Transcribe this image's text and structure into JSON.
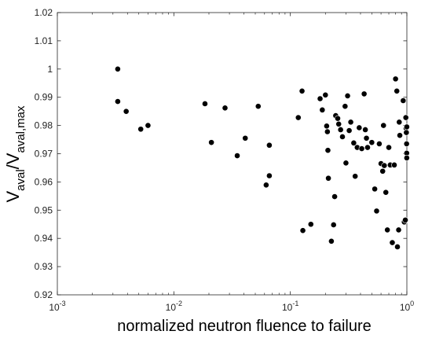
{
  "chart_data": {
    "type": "scatter",
    "x_scale": "log",
    "xlim": [
      0.001,
      1
    ],
    "ylim": [
      0.92,
      1.02
    ],
    "grid": false,
    "legend": "none",
    "marker_color": "#000000",
    "xlabel": "normalized neutron fluence to failure",
    "ylabel": {
      "base": "V",
      "sub_num": "aval",
      "slash": "/",
      "base2": "V",
      "sub_den": "aval,max"
    },
    "x_ticks": [
      {
        "value": 0.001,
        "base": "10",
        "exp": "-3"
      },
      {
        "value": 0.01,
        "base": "10",
        "exp": "-2"
      },
      {
        "value": 0.1,
        "base": "10",
        "exp": "-1"
      },
      {
        "value": 1,
        "base": "10",
        "exp": "0"
      }
    ],
    "y_ticks": [
      {
        "value": 0.92,
        "label": "0.92"
      },
      {
        "value": 0.93,
        "label": "0.93"
      },
      {
        "value": 0.94,
        "label": "0.94"
      },
      {
        "value": 0.95,
        "label": "0.95"
      },
      {
        "value": 0.96,
        "label": "0.96"
      },
      {
        "value": 0.97,
        "label": "0.97"
      },
      {
        "value": 0.98,
        "label": "0.98"
      },
      {
        "value": 0.99,
        "label": "0.99"
      },
      {
        "value": 1.0,
        "label": "1"
      },
      {
        "value": 1.01,
        "label": "1.01"
      },
      {
        "value": 1.02,
        "label": "1.02"
      }
    ],
    "points": [
      [
        0.0033,
        1.0
      ],
      [
        0.0033,
        0.9885
      ],
      [
        0.0039,
        0.985
      ],
      [
        0.0052,
        0.9787
      ],
      [
        0.006,
        0.98
      ],
      [
        0.0185,
        0.9877
      ],
      [
        0.021,
        0.974
      ],
      [
        0.0275,
        0.9862
      ],
      [
        0.035,
        0.9693
      ],
      [
        0.041,
        0.9755
      ],
      [
        0.053,
        0.9868
      ],
      [
        0.062,
        0.9589
      ],
      [
        0.066,
        0.973
      ],
      [
        0.066,
        0.9622
      ],
      [
        0.117,
        0.9828
      ],
      [
        0.126,
        0.9922
      ],
      [
        0.128,
        0.9428
      ],
      [
        0.15,
        0.945
      ],
      [
        0.18,
        0.9895
      ],
      [
        0.188,
        0.9855
      ],
      [
        0.2,
        0.9908
      ],
      [
        0.205,
        0.9798
      ],
      [
        0.208,
        0.9778
      ],
      [
        0.21,
        0.9712
      ],
      [
        0.212,
        0.9613
      ],
      [
        0.225,
        0.939
      ],
      [
        0.235,
        0.9448
      ],
      [
        0.24,
        0.9548
      ],
      [
        0.245,
        0.9835
      ],
      [
        0.255,
        0.9825
      ],
      [
        0.26,
        0.9805
      ],
      [
        0.27,
        0.9785
      ],
      [
        0.28,
        0.976
      ],
      [
        0.295,
        0.9868
      ],
      [
        0.3,
        0.9667
      ],
      [
        0.31,
        0.9905
      ],
      [
        0.32,
        0.9782
      ],
      [
        0.33,
        0.9812
      ],
      [
        0.35,
        0.9738
      ],
      [
        0.36,
        0.962
      ],
      [
        0.375,
        0.9722
      ],
      [
        0.39,
        0.9792
      ],
      [
        0.41,
        0.9718
      ],
      [
        0.43,
        0.9912
      ],
      [
        0.44,
        0.9785
      ],
      [
        0.45,
        0.9755
      ],
      [
        0.46,
        0.9722
      ],
      [
        0.5,
        0.974
      ],
      [
        0.53,
        0.9575
      ],
      [
        0.55,
        0.9497
      ],
      [
        0.58,
        0.9735
      ],
      [
        0.6,
        0.9665
      ],
      [
        0.62,
        0.9638
      ],
      [
        0.63,
        0.98
      ],
      [
        0.64,
        0.9658
      ],
      [
        0.66,
        0.9563
      ],
      [
        0.68,
        0.943
      ],
      [
        0.7,
        0.9722
      ],
      [
        0.72,
        0.966
      ],
      [
        0.75,
        0.9385
      ],
      [
        0.78,
        0.966
      ],
      [
        0.8,
        0.9965
      ],
      [
        0.82,
        0.9922
      ],
      [
        0.83,
        0.937
      ],
      [
        0.85,
        0.943
      ],
      [
        0.86,
        0.9812
      ],
      [
        0.87,
        0.9765
      ],
      [
        0.93,
        0.9888
      ],
      [
        0.95,
        0.9458
      ],
      [
        0.97,
        0.9465
      ],
      [
        0.98,
        0.9828
      ],
      [
        0.985,
        0.979
      ],
      [
        0.99,
        0.9775
      ],
      [
        0.995,
        0.9735
      ],
      [
        0.997,
        0.9702
      ],
      [
        0.998,
        0.9685
      ],
      [
        0.999,
        0.9795
      ]
    ]
  }
}
